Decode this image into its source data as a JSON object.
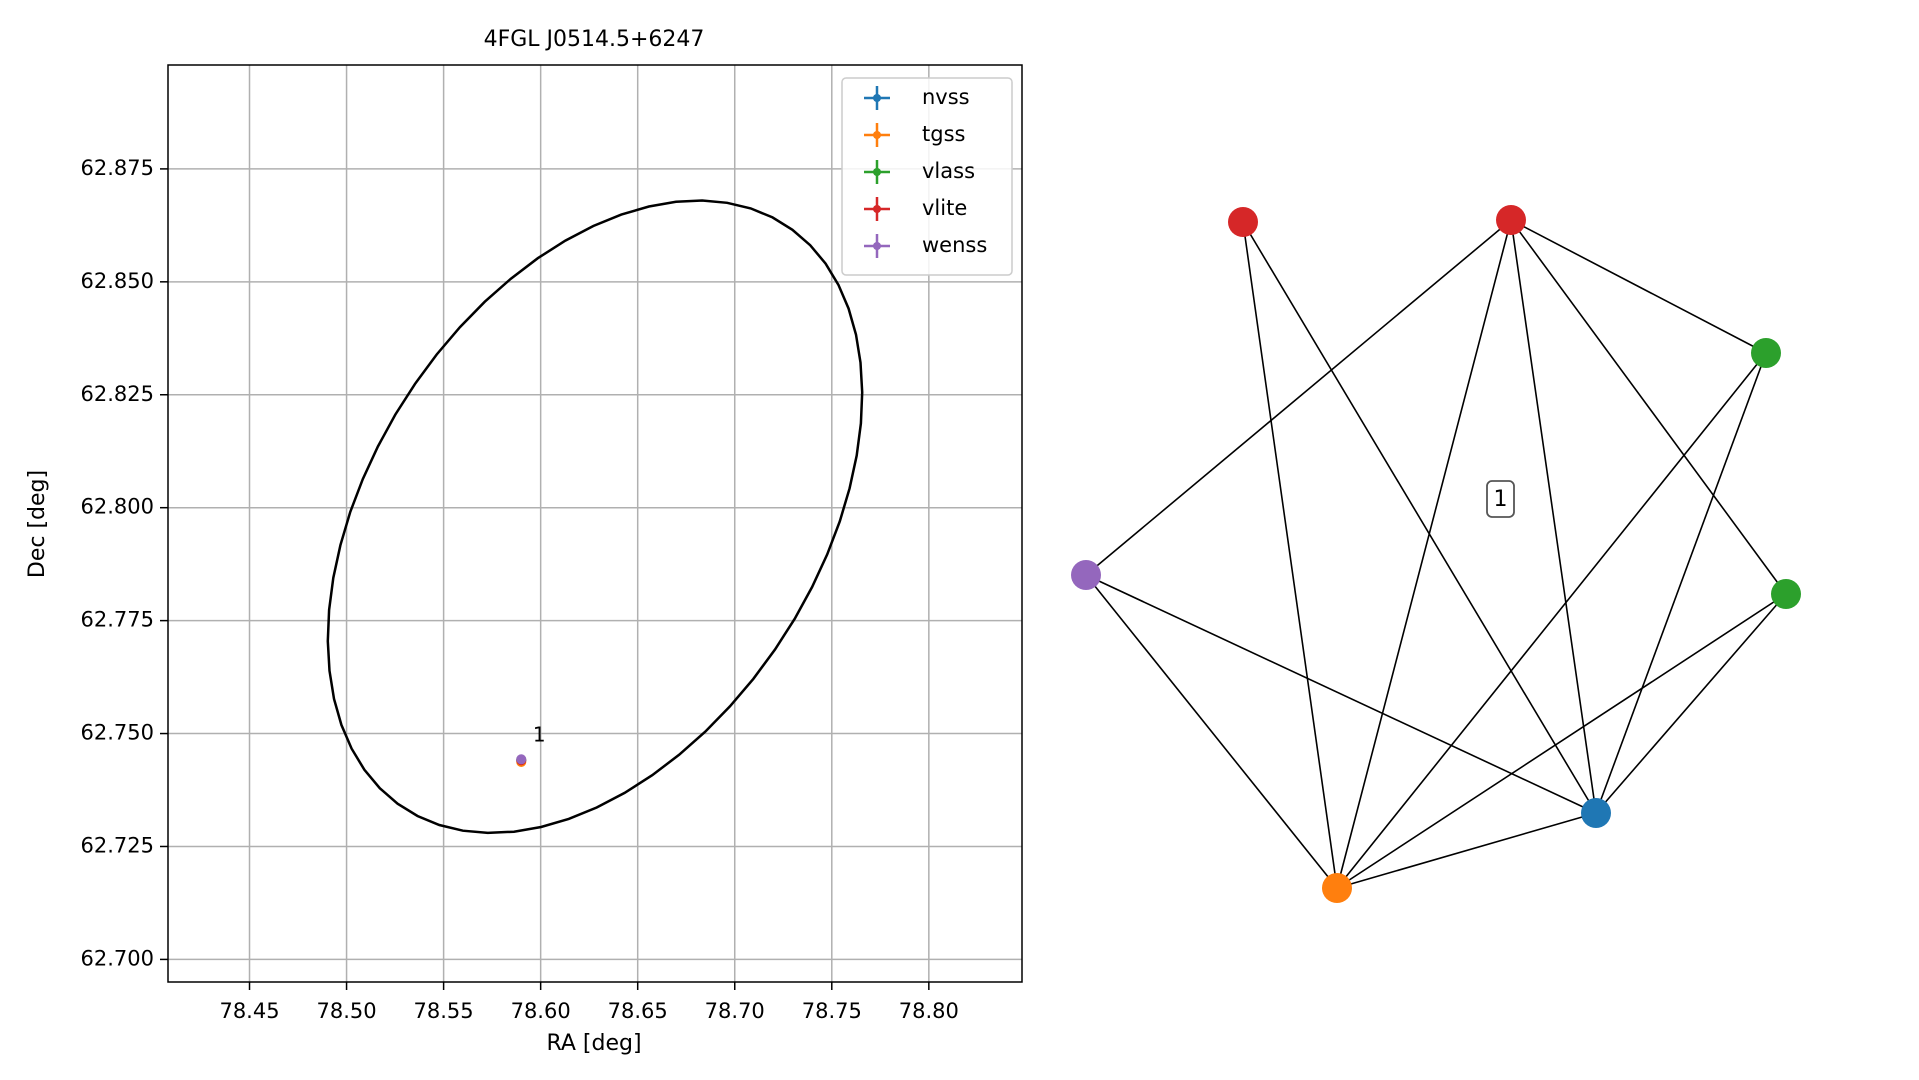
{
  "chart_data": [
    {
      "type": "scatter",
      "title": "4FGL J0514.5+6247",
      "xlabel": "RA [deg]",
      "ylabel": "Dec [deg]",
      "xlim": [
        78.408,
        78.848
      ],
      "ylim": [
        62.695,
        62.898
      ],
      "xticks": [
        78.45,
        78.5,
        78.55,
        78.6,
        78.65,
        78.7,
        78.75,
        78.8
      ],
      "xtick_labels": [
        "78.45",
        "78.50",
        "78.55",
        "78.60",
        "78.65",
        "78.70",
        "78.75",
        "78.80"
      ],
      "yticks": [
        62.7,
        62.725,
        62.75,
        62.775,
        62.8,
        62.825,
        62.85,
        62.875
      ],
      "ytick_labels": [
        "62.700",
        "62.725",
        "62.750",
        "62.775",
        "62.800",
        "62.825",
        "62.850",
        "62.875"
      ],
      "grid": true,
      "legend_position": "top-right",
      "series": [
        {
          "name": "nvss",
          "color": "#1f77b4",
          "x": [
            78.59
          ],
          "y": [
            62.744
          ]
        },
        {
          "name": "tgss",
          "color": "#ff7f0e",
          "x": [
            78.59
          ],
          "y": [
            62.7437
          ]
        },
        {
          "name": "vlass",
          "color": "#2ca02c",
          "x": [
            78.59
          ],
          "y": [
            62.7442
          ]
        },
        {
          "name": "vlite",
          "color": "#d62728",
          "x": [
            78.59
          ],
          "y": [
            62.7441
          ]
        },
        {
          "name": "wenss",
          "color": "#9467bd",
          "x": [
            78.59
          ],
          "y": [
            62.7443
          ]
        }
      ],
      "annotations": [
        {
          "text": "1",
          "x": 78.596,
          "y": 62.7495
        }
      ],
      "ellipse": {
        "center": [
          78.628,
          62.798
        ],
        "semi_major_ra_deg": 0.141,
        "semi_minor_dec_deg": 0.063,
        "rotation_deg": 14,
        "color": "#000000"
      }
    },
    {
      "type": "network",
      "cluster_label": "1",
      "nodes": [
        {
          "id": "red-1",
          "color": "#d62728"
        },
        {
          "id": "red-2",
          "color": "#d62728"
        },
        {
          "id": "green-1",
          "color": "#2ca02c"
        },
        {
          "id": "green-2",
          "color": "#2ca02c"
        },
        {
          "id": "blue",
          "color": "#1f77b4"
        },
        {
          "id": "orange",
          "color": "#ff7f0e"
        },
        {
          "id": "purple",
          "color": "#9467bd"
        }
      ],
      "edges": [
        [
          "red-1",
          "orange"
        ],
        [
          "red-1",
          "blue"
        ],
        [
          "red-2",
          "purple"
        ],
        [
          "red-2",
          "orange"
        ],
        [
          "red-2",
          "blue"
        ],
        [
          "red-2",
          "green-1"
        ],
        [
          "red-2",
          "green-2"
        ],
        [
          "green-1",
          "orange"
        ],
        [
          "green-1",
          "blue"
        ],
        [
          "green-2",
          "orange"
        ],
        [
          "green-2",
          "blue"
        ],
        [
          "purple",
          "orange"
        ],
        [
          "purple",
          "blue"
        ],
        [
          "orange",
          "blue"
        ]
      ]
    }
  ]
}
